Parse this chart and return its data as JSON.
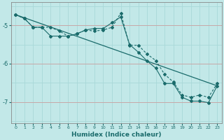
{
  "title": "",
  "xlabel": "Humidex (Indice chaleur)",
  "background_color": "#c2e8e8",
  "grid_color_v": "#a8d8d8",
  "grid_color_h": "#c8a8a8",
  "line_color": "#1a6b6b",
  "xlim": [
    -0.5,
    23.5
  ],
  "ylim": [
    -7.55,
    -4.4
  ],
  "yticks": [
    -7,
    -6,
    -5
  ],
  "xticks": [
    0,
    1,
    2,
    3,
    4,
    5,
    6,
    7,
    8,
    9,
    10,
    11,
    12,
    13,
    14,
    15,
    16,
    17,
    18,
    19,
    20,
    21,
    22,
    23
  ],
  "series1_x": [
    0,
    1,
    2,
    3,
    4,
    5,
    6,
    7,
    8,
    9,
    10,
    11,
    12,
    13,
    14,
    15,
    16,
    17,
    18,
    19,
    20,
    21,
    22,
    23
  ],
  "series1_y": [
    -4.72,
    -4.82,
    -5.05,
    -5.05,
    -5.28,
    -5.28,
    -5.28,
    -5.22,
    -5.12,
    -5.08,
    -5.08,
    -4.93,
    -4.78,
    -5.5,
    -5.7,
    -5.93,
    -6.12,
    -6.52,
    -6.52,
    -6.88,
    -6.98,
    -6.98,
    -7.02,
    -6.58
  ],
  "series2_x": [
    0,
    1,
    2,
    3,
    4,
    5,
    6,
    7,
    8,
    9,
    10,
    11,
    12,
    13,
    14,
    15,
    16,
    17,
    18,
    19,
    20,
    21,
    22,
    23
  ],
  "series2_y": [
    -4.72,
    -4.82,
    -5.05,
    -5.05,
    -5.05,
    -5.15,
    -5.28,
    -5.22,
    -5.12,
    -5.15,
    -5.12,
    -5.05,
    -4.68,
    -5.52,
    -5.52,
    -5.75,
    -5.92,
    -6.28,
    -6.48,
    -6.82,
    -6.88,
    -6.82,
    -6.88,
    -6.52
  ],
  "series3_x": [
    0,
    23
  ],
  "series3_y": [
    -4.72,
    -6.58
  ]
}
